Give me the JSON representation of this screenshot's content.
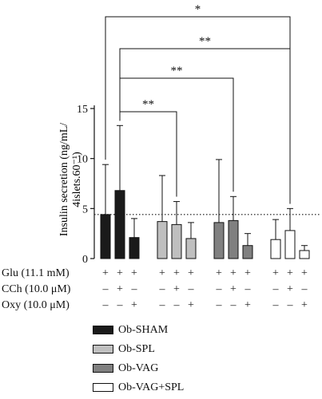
{
  "chart_data": {
    "type": "bar",
    "ylabel_line1": "Insulin secretion (ng/mL/",
    "ylabel_line2": "4islets.60⁻¹)",
    "ylim": [
      0,
      15
    ],
    "yticks": [
      0,
      5,
      10,
      15
    ],
    "reference_line": 4.4,
    "groups": [
      {
        "name": "Ob-SHAM",
        "color": "#1a1a1a",
        "values": [
          4.4,
          6.8,
          2.1
        ],
        "errors": [
          5.0,
          6.5,
          1.9
        ]
      },
      {
        "name": "Ob-SPL",
        "color": "#bfbfbf",
        "values": [
          3.7,
          3.4,
          2.0
        ],
        "errors": [
          4.6,
          2.3,
          1.6
        ]
      },
      {
        "name": "Ob-VAG",
        "color": "#808080",
        "values": [
          3.6,
          3.8,
          1.3
        ],
        "errors": [
          6.3,
          2.4,
          1.2
        ]
      },
      {
        "name": "Ob-VAG+SPL",
        "color": "#ffffff",
        "values": [
          1.9,
          2.8,
          0.8
        ],
        "errors": [
          2.0,
          2.2,
          0.5
        ]
      }
    ],
    "significance": [
      {
        "label": "*",
        "from": [
          0,
          0
        ],
        "to": [
          3,
          1
        ]
      },
      {
        "label": "**",
        "from": [
          0,
          1
        ],
        "to": [
          3,
          1
        ]
      },
      {
        "label": "**",
        "from": [
          0,
          1
        ],
        "to": [
          2,
          1
        ]
      },
      {
        "label": "**",
        "from": [
          0,
          1
        ],
        "to": [
          1,
          1
        ]
      }
    ],
    "conditions": [
      {
        "label": "Glu (11.1 mM)",
        "signs": [
          "+",
          "+",
          "+"
        ]
      },
      {
        "label": "CCh (10.0 μM)",
        "signs": [
          "–",
          "+",
          "–"
        ]
      },
      {
        "label": "Oxy (10.0 μM)",
        "signs": [
          "–",
          "–",
          "+"
        ]
      }
    ]
  }
}
